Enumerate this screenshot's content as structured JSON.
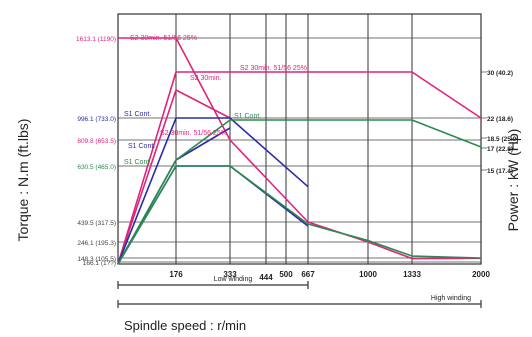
{
  "chart_data": {
    "type": "line",
    "xlabel": "Spindle speed : r/min",
    "ylabel_left": "Torque : N.m (ft.lbs)",
    "ylabel_right": "Power : kW (Hp)",
    "x_ticks": [
      "176",
      "333",
      "444",
      "500",
      "667",
      "1000",
      "1333",
      "2000"
    ],
    "left_tick_labels": [
      "1613.1 (1190)",
      "996.1 (733.0)",
      "809.8 (653.5)",
      "630.5 (465.0)",
      "439.5 (317.5)",
      "246.1 (195.3)",
      "148.3 (105.5)",
      "166.1 (1??)"
    ],
    "right_tick_labels": [
      "30 (40.2)",
      "22 (18.6)",
      "18.5 (25.0)",
      "17 (22.8)",
      "15 (17.4)"
    ],
    "ranges": [
      {
        "label": "Low winding",
        "from": "0",
        "to": "667"
      },
      {
        "label": "High winding",
        "from": "0",
        "to": "2000"
      }
    ],
    "series": [
      {
        "name": "S2 30min. 51/56 25%",
        "color": "#e0247a",
        "kind": "torque",
        "x": [
          0,
          176,
          333,
          667,
          1000,
          1333,
          2000
        ],
        "y": [
          1613.1,
          1613.1,
          809.8,
          439.5,
          246.1,
          180,
          150
        ]
      },
      {
        "name": "S2 30min. 51/56 25%",
        "color": "#e0247a",
        "kind": "power",
        "x": [
          0,
          176,
          1333,
          2000
        ],
        "y": [
          0,
          30,
          30,
          22
        ]
      },
      {
        "name": "S2 30min. 51/56 25%",
        "color": "#e0247a",
        "kind": "power",
        "x": [
          0,
          176,
          333
        ],
        "y": [
          0,
          24.5,
          22
        ]
      },
      {
        "name": "S1 Cont.",
        "color": "#2b2ba8",
        "kind": "torque",
        "x": [
          0,
          176,
          333,
          667
        ],
        "y": [
          0,
          996.1,
          996.1,
          560
        ]
      },
      {
        "name": "S1 Cont.",
        "color": "#2b2ba8",
        "kind": "torque2",
        "x": [
          0,
          176,
          333,
          667
        ],
        "y": [
          0,
          630.5,
          630.5,
          400
        ]
      },
      {
        "name": "S1 Cont.",
        "color": "#2b2ba8",
        "kind": "power",
        "x": [
          0,
          176,
          333
        ],
        "y": [
          0,
          15.5,
          18.3
        ]
      },
      {
        "name": "S1 Cont.",
        "color": "#2b8a4e",
        "kind": "power",
        "x": [
          0,
          176,
          333,
          667,
          1333,
          2000
        ],
        "y": [
          0,
          15.5,
          18.5,
          18.5,
          18.5,
          16.5
        ]
      },
      {
        "name": "S1 Cont.",
        "color": "#2b8a4e",
        "kind": "torque",
        "x": [
          0,
          176,
          333,
          667,
          1000,
          1333,
          2000
        ],
        "y": [
          0,
          630.5,
          630.5,
          420,
          260,
          190,
          148.3
        ]
      }
    ],
    "series_labels": [
      {
        "text": "S2 30min. 51/56 25%",
        "color": "#e0247a"
      },
      {
        "text": "S2 30min. 51/56 25%",
        "color": "#e0247a"
      },
      {
        "text": "S2 30min.",
        "color": "#e0247a"
      },
      {
        "text": "S2 30min. 51/56 25%",
        "color": "#e0247a"
      },
      {
        "text": "S1 Cont.",
        "color": "#2b2ba8"
      },
      {
        "text": "S1 Cont.",
        "color": "#2b8a4e"
      },
      {
        "text": "S1 Cont.",
        "color": "#2b8a4e"
      },
      {
        "text": "S1 Cont.",
        "color": "#2b2ba8"
      }
    ],
    "grid": true
  }
}
